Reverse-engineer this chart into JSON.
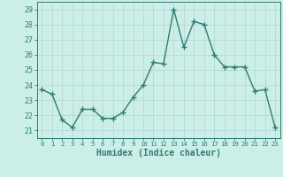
{
  "x": [
    0,
    1,
    2,
    3,
    4,
    5,
    6,
    7,
    8,
    9,
    10,
    11,
    12,
    13,
    14,
    15,
    16,
    17,
    18,
    19,
    20,
    21,
    22,
    23
  ],
  "y": [
    23.7,
    23.4,
    21.7,
    21.2,
    22.4,
    22.4,
    21.8,
    21.8,
    22.2,
    23.2,
    24.0,
    25.5,
    25.4,
    29.0,
    26.5,
    28.2,
    28.0,
    26.0,
    25.2,
    25.2,
    25.2,
    23.6,
    23.7,
    21.2
  ],
  "line_color": "#2e7d6e",
  "marker": "+",
  "marker_size": 4,
  "marker_linewidth": 1.0,
  "bg_color": "#cceee8",
  "grid_color": "#b8d8d4",
  "xlabel": "Humidex (Indice chaleur)",
  "ylabel_ticks": [
    21,
    22,
    23,
    24,
    25,
    26,
    27,
    28,
    29
  ],
  "xtick_labels": [
    "0",
    "1",
    "2",
    "3",
    "4",
    "5",
    "6",
    "7",
    "8",
    "9",
    "10",
    "11",
    "12",
    "13",
    "14",
    "15",
    "16",
    "17",
    "18",
    "19",
    "20",
    "21",
    "22",
    "23"
  ],
  "ylim": [
    20.5,
    29.5
  ],
  "xlim": [
    -0.5,
    23.5
  ],
  "tick_color": "#2e7d6e",
  "axis_color": "#2e7d6e",
  "linewidth": 1.0,
  "xlabel_fontsize": 7.0,
  "ytick_fontsize": 6.0,
  "xtick_fontsize": 5.2
}
